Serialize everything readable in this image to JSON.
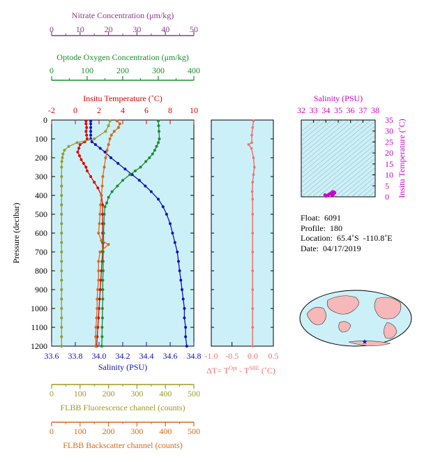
{
  "float_info": {
    "float_label": "Float:  6091",
    "profile_label": "Profile:  180",
    "location_label": "Location:  65.4˚S  -110.8˚E",
    "date_label": "Date:  04/17/2019"
  },
  "colors": {
    "panel_bg": "#ccf0f7",
    "nitrate": "#8b3a8b",
    "oxygen": "#1a8c2e",
    "temperature": "#e00000",
    "salinity": "#1010c0",
    "fluorescence": "#9a9a2a",
    "backscatter": "#d46a1a",
    "delta_t": "#f07070",
    "ts_axis": "#cc00cc",
    "land": "#f6b8b8"
  },
  "chart_data": [
    {
      "type": "line",
      "panel": "main-profile",
      "ylabel": "Pressure (decibar)",
      "ylim": [
        1200,
        0
      ],
      "yticks": [
        0,
        100,
        200,
        300,
        400,
        500,
        600,
        700,
        800,
        900,
        1000,
        1100,
        1200
      ],
      "axes": {
        "nitrate": {
          "label": "Nitrate Concentration (μm/kg)",
          "range": [
            0,
            50
          ],
          "ticks": [
            0,
            10,
            20,
            30,
            40,
            50
          ]
        },
        "oxygen": {
          "label": "Optode Oxygen Concentration (μm/kg)",
          "range": [
            0,
            400
          ],
          "ticks": [
            0,
            100,
            200,
            300,
            400
          ]
        },
        "temperature": {
          "label": "Insitu Temperature (˚C)",
          "range": [
            -2,
            10
          ],
          "ticks": [
            -2,
            0,
            2,
            4,
            6,
            8,
            10
          ]
        },
        "salinity": {
          "label": "Salinity (PSU)",
          "range": [
            33.6,
            34.8
          ],
          "ticks": [
            "33.6",
            "33.8",
            "34.0",
            "34.2",
            "34.4",
            "34.6",
            "34.8"
          ]
        },
        "fluorescence": {
          "label": "FLBB Fluorescence channel (counts)",
          "range": [
            0,
            500
          ],
          "ticks": [
            0,
            100,
            200,
            300,
            400,
            500
          ]
        },
        "backscatter": {
          "label": "FLBB Backscatter channel (counts)",
          "range": [
            0,
            500
          ],
          "ticks": [
            0,
            100,
            200,
            300,
            400,
            500
          ]
        }
      },
      "series": [
        {
          "name": "Insitu Temperature",
          "axis": "temperature",
          "pressure": [
            5,
            20,
            40,
            60,
            80,
            100,
            115,
            130,
            150,
            170,
            190,
            210,
            230,
            250,
            270,
            300,
            330,
            360,
            400,
            450,
            500,
            550,
            600,
            650,
            700,
            750,
            800,
            850,
            900,
            950,
            1000,
            1050,
            1100,
            1150,
            1200
          ],
          "values": [
            0.9,
            0.9,
            0.95,
            0.9,
            0.95,
            1.0,
            0.8,
            0.4,
            0.3,
            0.2,
            0.35,
            0.5,
            0.7,
            0.9,
            1.0,
            1.3,
            1.6,
            1.9,
            2.2,
            2.3,
            2.3,
            2.3,
            2.3,
            2.3,
            2.3,
            2.25,
            2.2,
            2.15,
            2.1,
            2.05,
            2.0,
            1.95,
            1.9,
            1.85,
            1.8
          ]
        },
        {
          "name": "Salinity",
          "axis": "salinity",
          "pressure": [
            5,
            20,
            40,
            60,
            80,
            100,
            115,
            130,
            150,
            170,
            200,
            230,
            260,
            290,
            320,
            350,
            380,
            420,
            460,
            500,
            550,
            600,
            650,
            700,
            750,
            800,
            850,
            900,
            950,
            1000,
            1050,
            1100,
            1150,
            1200
          ],
          "values": [
            33.93,
            33.93,
            33.93,
            33.93,
            33.93,
            33.93,
            33.94,
            33.97,
            34.01,
            34.05,
            34.1,
            34.16,
            34.22,
            34.28,
            34.34,
            34.39,
            34.44,
            34.5,
            34.54,
            34.57,
            34.6,
            34.62,
            34.64,
            34.66,
            34.67,
            34.68,
            34.69,
            34.7,
            34.71,
            34.72,
            34.72,
            34.73,
            34.73,
            34.74
          ]
        },
        {
          "name": "Optode Oxygen Concentration",
          "axis": "oxygen",
          "pressure": [
            5,
            30,
            60,
            100,
            120,
            140,
            160,
            180,
            200,
            220,
            250,
            270,
            290,
            320,
            350,
            380,
            410,
            440,
            460,
            500,
            550,
            600,
            650,
            700,
            750,
            800,
            850,
            900,
            950,
            1000,
            1050,
            1100,
            1150,
            1200
          ],
          "values": [
            300,
            301,
            302,
            303,
            300,
            295,
            290,
            284,
            275,
            265,
            250,
            235,
            220,
            200,
            185,
            170,
            160,
            155,
            150,
            148,
            147,
            146,
            146,
            145,
            145,
            145,
            144,
            144,
            144,
            143,
            143,
            142,
            142,
            141
          ]
        },
        {
          "name": "FLBB Fluorescence channel",
          "axis": "fluorescence",
          "pressure": [
            5,
            30,
            60,
            100,
            120,
            140,
            160,
            180,
            200,
            220,
            250,
            300,
            350,
            400,
            450,
            500,
            550,
            600,
            650,
            700,
            750,
            800,
            850,
            900,
            950,
            1000,
            1050,
            1100,
            1150,
            1200
          ],
          "values": [
            205,
            200,
            190,
            150,
            90,
            60,
            45,
            40,
            38,
            36,
            35,
            35,
            35,
            35,
            35,
            35,
            35,
            35,
            35,
            35,
            35,
            35,
            35,
            35,
            35,
            35,
            35,
            35,
            35,
            35
          ]
        },
        {
          "name": "FLBB Backscatter channel",
          "axis": "backscatter",
          "pressure": [
            5,
            20,
            40,
            60,
            80,
            100,
            130,
            160,
            200,
            250,
            300,
            350,
            400,
            450,
            500,
            550,
            600,
            640,
            660,
            700,
            750,
            800,
            850,
            900,
            950,
            1000,
            1050,
            1100,
            1150,
            1200
          ],
          "values": [
            230,
            240,
            235,
            220,
            210,
            205,
            200,
            195,
            190,
            185,
            180,
            178,
            175,
            172,
            170,
            168,
            165,
            175,
            200,
            170,
            165,
            165,
            165,
            162,
            160,
            160,
            158,
            156,
            155,
            155
          ]
        }
      ]
    },
    {
      "type": "line",
      "panel": "delta-t",
      "xlabel": "ΔT= T^Opt - T^SBE (˚C)",
      "xlim": [
        -1.0,
        0.5
      ],
      "xticks": [
        "-1.0",
        "-0.5",
        "0.0",
        "0.5"
      ],
      "ylim": [
        1200,
        0
      ],
      "series": [
        {
          "name": "ΔT",
          "pressure": [
            5,
            40,
            80,
            120,
            130,
            150,
            200,
            250,
            290,
            330,
            380,
            420,
            500,
            600,
            700,
            800,
            900,
            1000,
            1100,
            1200
          ],
          "values": [
            0.02,
            0.0,
            -0.02,
            -0.02,
            -0.1,
            -0.03,
            0.02,
            0.04,
            0.02,
            0.0,
            -0.01,
            0.0,
            0.0,
            0.0,
            0.0,
            0.0,
            0.0,
            0.0,
            0.0,
            0.0
          ]
        }
      ]
    },
    {
      "type": "scatter",
      "panel": "ts-diagram",
      "title": "Salinity (PSU)",
      "xlim": [
        32,
        38
      ],
      "xticks": [
        32,
        33,
        34,
        35,
        36,
        37,
        38
      ],
      "ylabel": "Insitu Temperature (˚C)",
      "ylim": [
        0,
        35
      ],
      "yticks": [
        0,
        5,
        10,
        15,
        20,
        25,
        30,
        35
      ],
      "points": {
        "salinity": [
          33.92,
          33.95,
          34.0,
          34.1,
          34.2,
          34.3,
          34.4,
          34.5,
          34.55,
          34.6,
          34.65,
          34.7,
          34.72,
          34.6,
          34.5
        ],
        "temperature": [
          0.9,
          0.5,
          0.3,
          0.6,
          0.9,
          1.3,
          1.6,
          2.0,
          2.3,
          2.3,
          2.2,
          2.0,
          1.8,
          1.0,
          0.7
        ]
      }
    }
  ]
}
